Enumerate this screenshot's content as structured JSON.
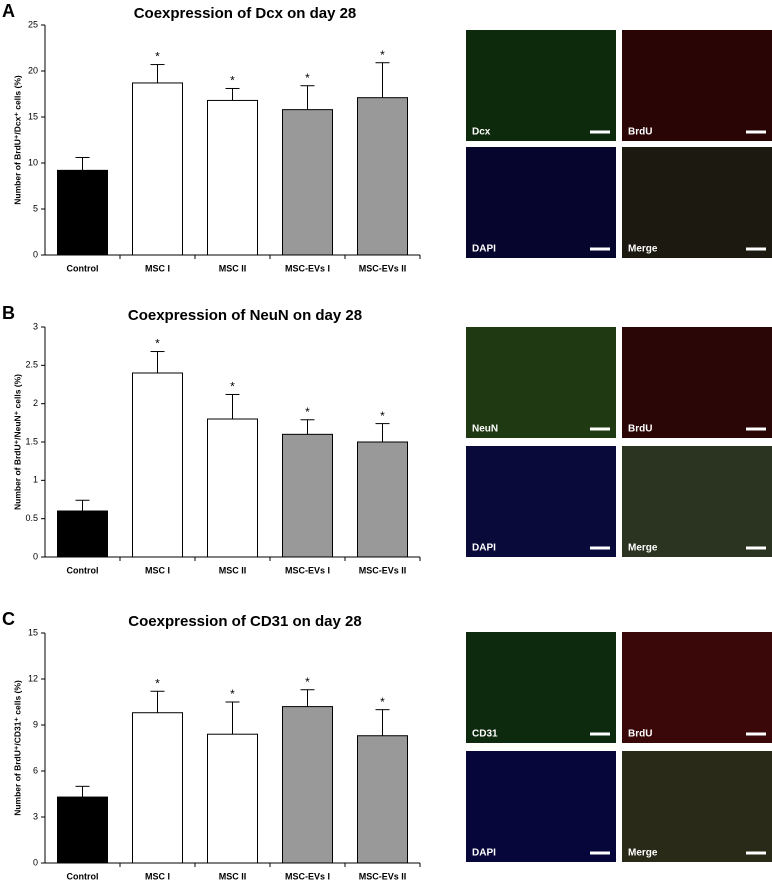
{
  "chart_data": [
    {
      "type": "bar",
      "panel_label": "A",
      "title": "Coexpression of Dcx on day 28",
      "y_label": "Number of BrdU⁺/Dcx⁺ cells (%)",
      "categories": [
        "Control",
        "MSC I",
        "MSC II",
        "MSC-EVs I",
        "MSC-EVs II"
      ],
      "values": [
        9.2,
        18.7,
        16.8,
        15.8,
        17.1
      ],
      "errors": [
        1.4,
        2.0,
        1.3,
        2.6,
        3.8
      ],
      "significance": [
        null,
        "*",
        "*",
        "*",
        "*"
      ],
      "colors": [
        "#000000",
        "#ffffff",
        "#ffffff",
        "#999999",
        "#999999"
      ],
      "ylim": [
        0,
        25
      ],
      "yticks": [
        0,
        5,
        10,
        15,
        20,
        25
      ],
      "micrograph_labels": [
        "Dcx",
        "BrdU",
        "DAPI",
        "Merge"
      ]
    },
    {
      "type": "bar",
      "panel_label": "B",
      "title": "Coexpression of NeuN on day 28",
      "y_label": "Number of BrdU⁺/NeuN⁺ cells (%)",
      "categories": [
        "Control",
        "MSC I",
        "MSC II",
        "MSC-EVs I",
        "MSC-EVs II"
      ],
      "values": [
        0.6,
        2.4,
        1.8,
        1.6,
        1.5
      ],
      "errors": [
        0.14,
        0.28,
        0.32,
        0.19,
        0.24
      ],
      "significance": [
        null,
        "*",
        "*",
        "*",
        "*"
      ],
      "colors": [
        "#000000",
        "#ffffff",
        "#ffffff",
        "#999999",
        "#999999"
      ],
      "ylim": [
        0,
        3
      ],
      "yticks": [
        0,
        0.5,
        1,
        1.5,
        2,
        2.5,
        3
      ],
      "micrograph_labels": [
        "NeuN",
        "BrdU",
        "DAPI",
        "Merge"
      ]
    },
    {
      "type": "bar",
      "panel_label": "C",
      "title": "Coexpression of CD31 on day 28",
      "y_label": "Number of BrdU⁺/CD31⁺ cells (%)",
      "categories": [
        "Control",
        "MSC I",
        "MSC II",
        "MSC-EVs I",
        "MSC-EVs II"
      ],
      "values": [
        4.3,
        9.8,
        8.4,
        10.2,
        8.3
      ],
      "errors": [
        0.7,
        1.4,
        2.1,
        1.1,
        1.7
      ],
      "significance": [
        null,
        "*",
        "*",
        "*",
        "*"
      ],
      "colors": [
        "#000000",
        "#ffffff",
        "#ffffff",
        "#999999",
        "#999999"
      ],
      "ylim": [
        0,
        15
      ],
      "yticks": [
        0,
        3,
        6,
        9,
        12,
        15
      ],
      "micrograph_labels": [
        "CD31",
        "BrdU",
        "DAPI",
        "Merge"
      ]
    }
  ]
}
